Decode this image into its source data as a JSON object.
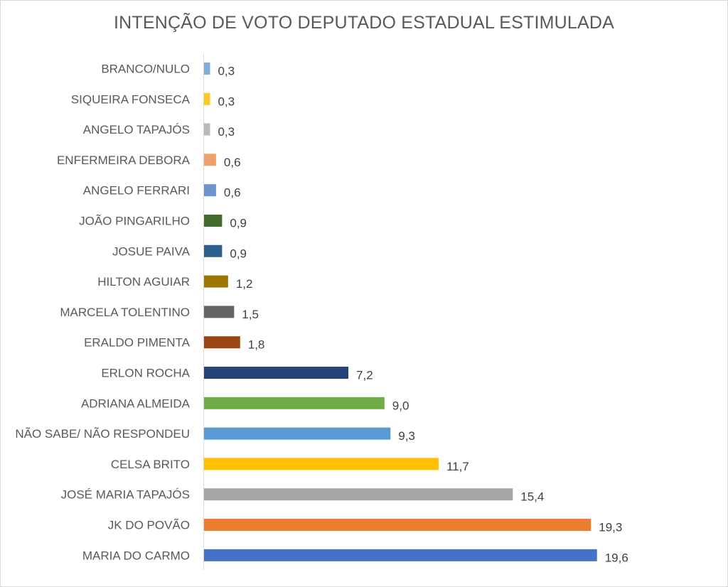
{
  "chart_data": {
    "type": "bar",
    "orientation": "horizontal",
    "title": "INTENÇÃO DE VOTO DEPUTADO ESTADUAL ESTIMULADA",
    "categories": [
      "BRANCO/NULO",
      "SIQUEIRA FONSECA",
      "ANGELO TAPAJÓS",
      "ENFERMEIRA DEBORA",
      "ANGELO FERRARI",
      "JOÃO PINGARILHO",
      "JOSUE PAIVA",
      "HILTON AGUIAR",
      "MARCELA TOLENTINO",
      "ERALDO PIMENTA",
      "ERLON ROCHA",
      "ADRIANA ALMEIDA",
      "NÃO SABE/ NÃO RESPONDEU",
      "CELSA BRITO",
      "JOSÉ MARIA TAPAJÓS",
      "JK DO POVÃO",
      "MARIA DO CARMO"
    ],
    "values": [
      0.3,
      0.3,
      0.3,
      0.6,
      0.6,
      0.9,
      0.9,
      1.2,
      1.5,
      1.8,
      7.2,
      9.0,
      9.3,
      11.7,
      15.4,
      19.3,
      19.6
    ],
    "value_labels": [
      "0,3",
      "0,3",
      "0,3",
      "0,6",
      "0,6",
      "0,9",
      "0,9",
      "1,2",
      "1,5",
      "1,8",
      "7,2",
      "9,0",
      "9,3",
      "11,7",
      "15,4",
      "19,3",
      "19,6"
    ],
    "colors": [
      "#7faedc",
      "#ffc91f",
      "#b8b8b8",
      "#f0a06a",
      "#6e94d0",
      "#446b2e",
      "#2f5f8f",
      "#9b7700",
      "#636363",
      "#9c4512",
      "#264478",
      "#70ad47",
      "#5b9bd5",
      "#ffc000",
      "#a5a5a5",
      "#ed7d31",
      "#4472c4"
    ],
    "xlim": [
      0,
      20
    ],
    "grid": false,
    "legend": "none"
  }
}
